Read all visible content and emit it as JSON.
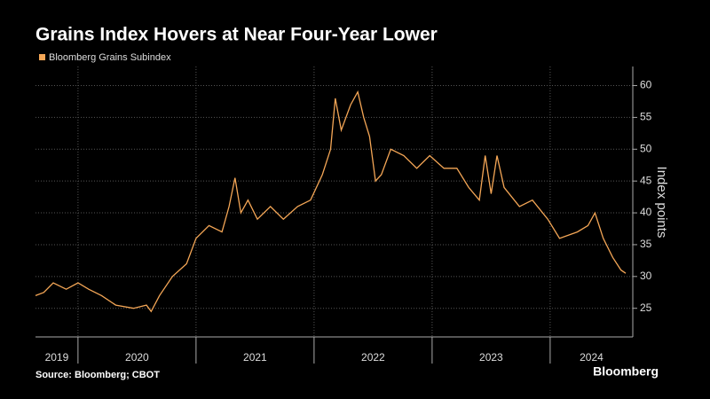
{
  "chart_data": {
    "type": "line",
    "title": "Grains Index Hovers at Near Four-Year Lower",
    "ylabel": "Index points",
    "source": "Source: Bloomberg; CBOT",
    "brand": "Bloomberg",
    "year_labels": [
      "2019",
      "2020",
      "2021",
      "2022",
      "2023",
      "2024"
    ],
    "xlim": [
      2019.64,
      2024.7
    ],
    "xticks": [
      2020,
      2021,
      2022,
      2023,
      2024
    ],
    "ylim": [
      20.5,
      63
    ],
    "yticks": [
      25,
      30,
      35,
      40,
      45,
      50,
      55,
      60
    ],
    "grid": true,
    "series": [
      {
        "name": "Bloomberg Grains Subindex",
        "color": "#f4a656",
        "x": [
          2019.64,
          2019.71,
          2019.79,
          2019.9,
          2020.0,
          2020.09,
          2020.2,
          2020.32,
          2020.47,
          2020.58,
          2020.62,
          2020.69,
          2020.8,
          2020.92,
          2021.0,
          2021.11,
          2021.22,
          2021.28,
          2021.33,
          2021.38,
          2021.44,
          2021.52,
          2021.63,
          2021.74,
          2021.86,
          2021.97,
          2022.07,
          2022.14,
          2022.18,
          2022.23,
          2022.31,
          2022.37,
          2022.42,
          2022.47,
          2022.52,
          2022.57,
          2022.65,
          2022.76,
          2022.87,
          2022.98,
          2023.1,
          2023.21,
          2023.31,
          2023.4,
          2023.45,
          2023.5,
          2023.55,
          2023.61,
          2023.74,
          2023.85,
          2023.98,
          2024.08,
          2024.23,
          2024.32,
          2024.38,
          2024.45,
          2024.53,
          2024.6,
          2024.64
        ],
        "values": [
          27,
          27.5,
          29,
          28,
          29,
          28,
          27,
          25.5,
          25,
          25.5,
          24.5,
          27,
          30,
          32,
          36,
          38,
          37,
          41,
          45.5,
          40,
          42,
          39,
          41,
          39,
          41,
          42,
          46,
          50,
          58,
          53,
          57,
          59,
          55,
          52,
          45,
          46,
          50,
          49,
          47,
          49,
          47,
          47,
          44,
          42,
          49,
          43,
          49,
          44,
          41,
          42,
          39,
          36,
          37,
          38,
          40,
          36,
          33,
          31,
          30.5
        ]
      }
    ]
  }
}
